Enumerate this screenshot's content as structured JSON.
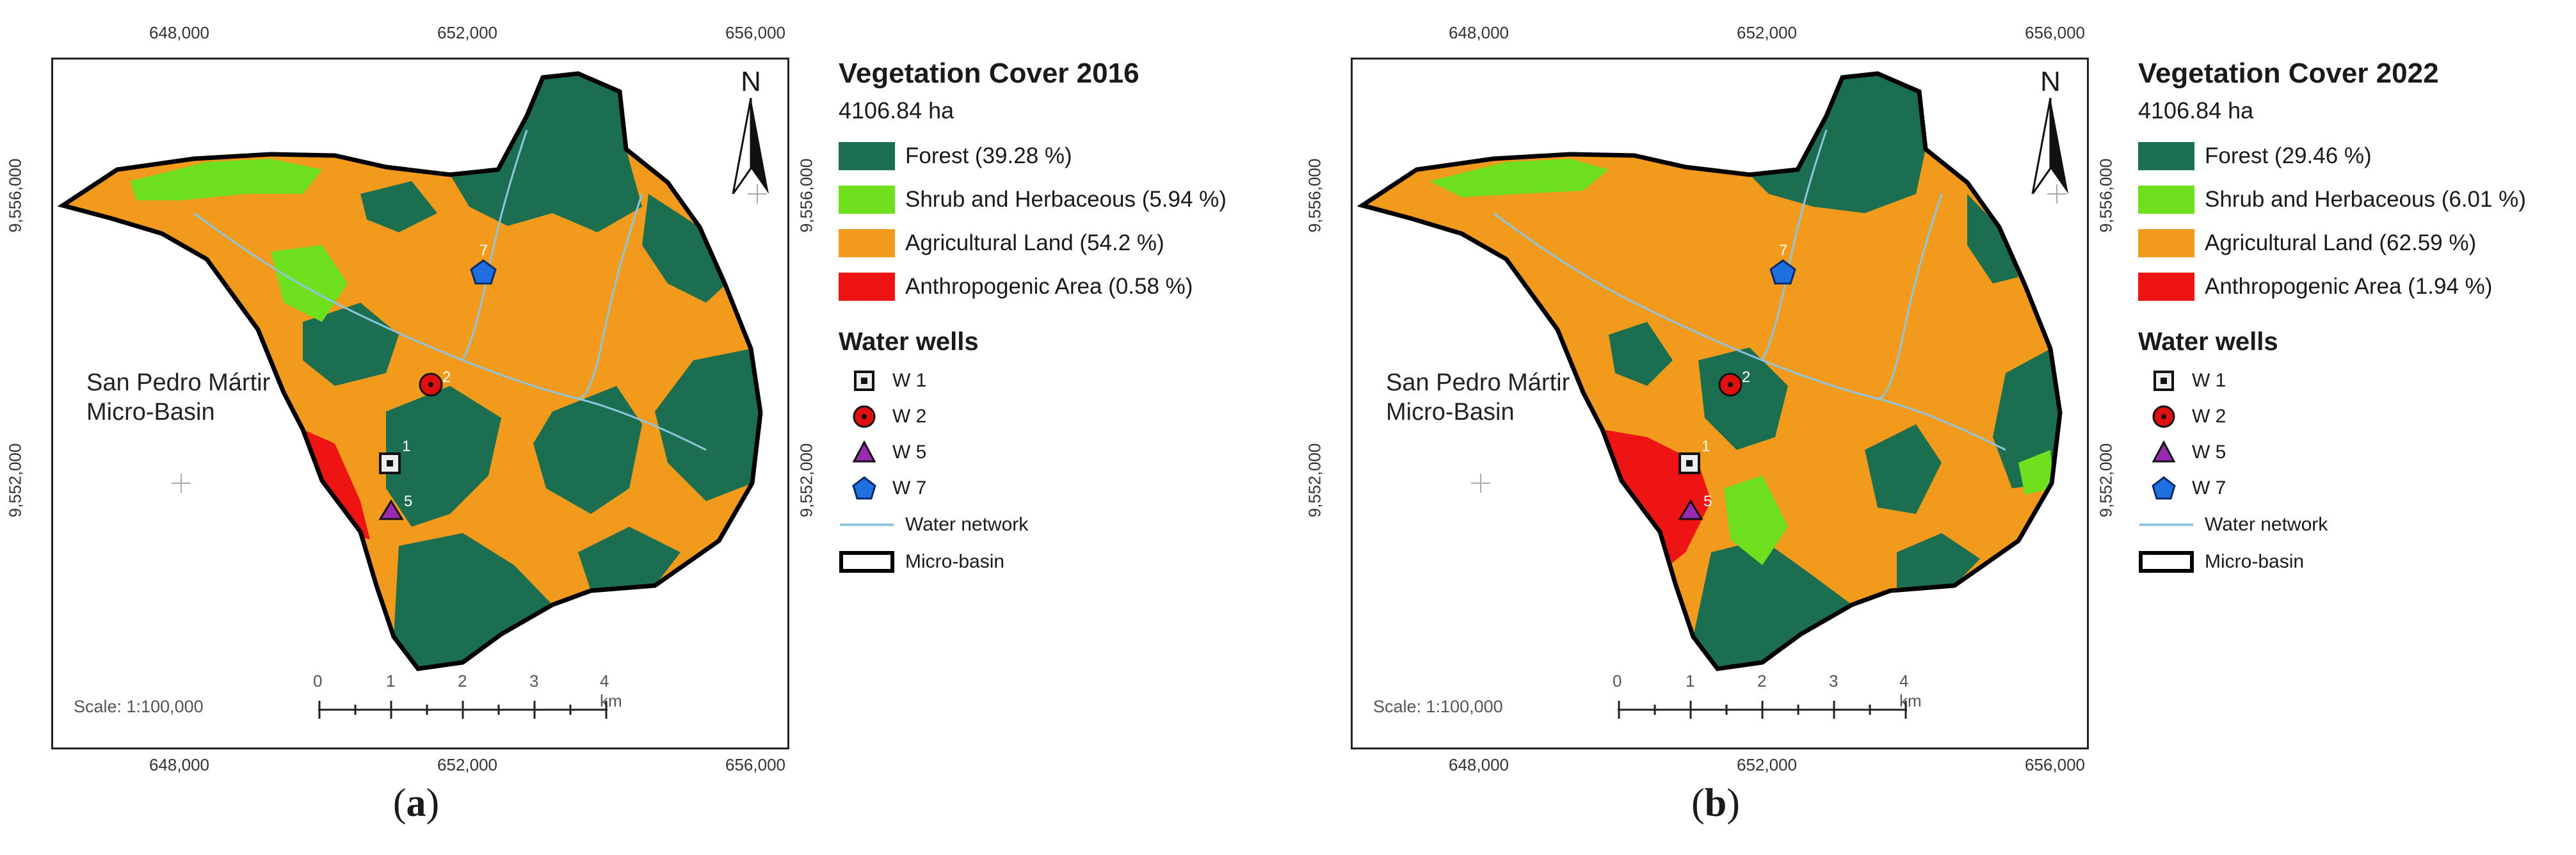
{
  "colors": {
    "forest": "#1b6e4f",
    "shrub": "#6ee01e",
    "agri": "#f29a1c",
    "anthro": "#ee1414",
    "water": "#8ec4dd"
  },
  "panels": [
    {
      "caption_letter": "a",
      "legend_title": "Vegetation Cover 2016",
      "area": "4106.84 ha",
      "classes": [
        {
          "label": "Forest (39.28 %)",
          "color": "#1b6e4f"
        },
        {
          "label": "Shrub and Herbaceous (5.94 %)",
          "color": "#6ee01e"
        },
        {
          "label": "Agricultural Land (54.2 %)",
          "color": "#f29a1c"
        },
        {
          "label": "Anthropogenic Area (0.58 %)",
          "color": "#ee1414"
        }
      ]
    },
    {
      "caption_letter": "b",
      "legend_title": "Vegetation Cover 2022",
      "area": "4106.84 ha",
      "classes": [
        {
          "label": "Forest (29.46 %)",
          "color": "#1b6e4f"
        },
        {
          "label": "Shrub and Herbaceous (6.01 %)",
          "color": "#6ee01e"
        },
        {
          "label": "Agricultural Land (62.59 %)",
          "color": "#f29a1c"
        },
        {
          "label": "Anthropogenic Area (1.94 %)",
          "color": "#ee1414"
        }
      ]
    }
  ],
  "shared": {
    "wells_title": "Water wells",
    "wells": [
      {
        "label": "W 1",
        "number": "1",
        "symbol": "square-icon"
      },
      {
        "label": "W 2",
        "number": "2",
        "symbol": "circle-icon"
      },
      {
        "label": "W 5",
        "number": "5",
        "symbol": "triangle-icon"
      },
      {
        "label": "W 7",
        "number": "7",
        "symbol": "pentagon-icon"
      }
    ],
    "water_network": "Water network",
    "micro_basin": "Micro-basin",
    "basin_line1": "San Pedro Mártir",
    "basin_line2": "Micro-Basin",
    "scale": "Scale: 1:100,000",
    "scale_ticks": [
      "0",
      "1",
      "2",
      "3",
      "4 km"
    ],
    "north": "N",
    "x_coords": [
      "648,000",
      "652,000",
      "656,000"
    ],
    "y_coords": [
      "9,556,000",
      "9,552,000"
    ]
  }
}
